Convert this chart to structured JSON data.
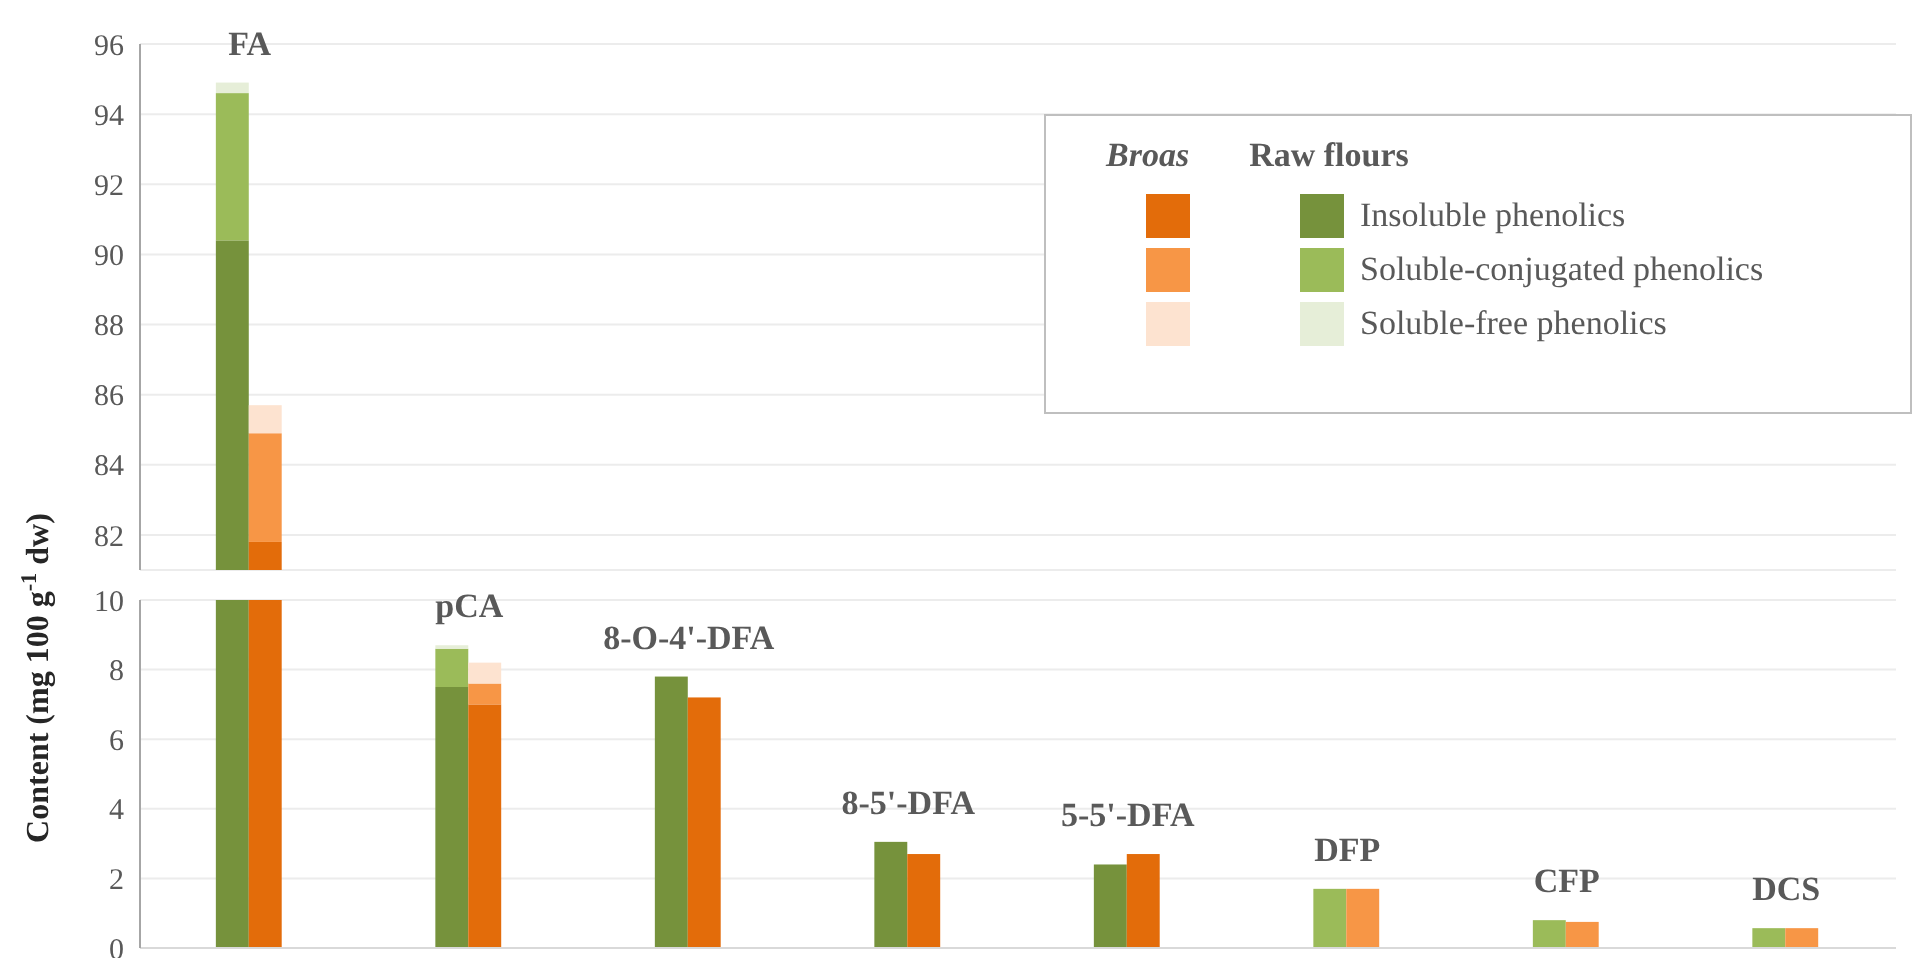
{
  "chart_data": [
    {
      "type": "bar",
      "categories": [
        "FA",
        null,
        null,
        null,
        null,
        null,
        null,
        null
      ],
      "series": [
        {
          "name": "Insoluble phenolics",
          "color": "#76923c",
          "values": [
            90.4,
            null,
            null,
            null,
            null,
            null,
            null,
            null
          ],
          "base": [
            0,
            null,
            null,
            null,
            null,
            null,
            null,
            null
          ]
        },
        {
          "name": "Soluble-conjugated phenolics",
          "color": "#9bbb59",
          "values": [
            4.2,
            null,
            null,
            null,
            null,
            null,
            null,
            null
          ],
          "base": [
            90.4,
            null,
            null,
            null,
            null,
            null,
            null,
            null
          ]
        },
        {
          "name": "Soluble-free phenolics",
          "color": "#e6eed8",
          "values": [
            0.3,
            null,
            null,
            null,
            null,
            null,
            null,
            null
          ],
          "base": [
            94.6,
            null,
            null,
            null,
            null,
            null,
            null,
            null
          ]
        },
        {
          "color": "#e36c0a",
          "values": [
            81.8,
            null,
            null,
            null,
            null,
            null,
            null,
            null
          ],
          "base": [
            0,
            null,
            null,
            null,
            null,
            null,
            null,
            null
          ]
        },
        {
          "color": "#f79646",
          "values": [
            3.1,
            null,
            null,
            null,
            null,
            null,
            null,
            null
          ],
          "base": [
            81.8,
            null,
            null,
            null,
            null,
            null,
            null,
            null
          ]
        },
        {
          "color": "#fde3d0",
          "values": [
            0.8,
            null,
            null,
            null,
            null,
            null,
            null,
            null
          ],
          "base": [
            84.9,
            null,
            null,
            null,
            null,
            null,
            null,
            null
          ]
        }
      ],
      "ylim": [
        81,
        96
      ],
      "yticks": [
        82,
        84,
        86,
        88,
        90,
        92,
        94,
        96
      ],
      "grid": "y",
      "legend": "top right",
      "legend_title": "Raw flours",
      "annotations": [
        "Broas"
      ]
    },
    {
      "type": "bar",
      "categories": [
        null,
        "pCA",
        "8-O-4'-DFA",
        "8-5'-DFA",
        "5-5'-DFA",
        "DFP",
        "CFP",
        "DCS"
      ],
      "series": [
        {
          "color": "#76923c",
          "values": [
            90.4,
            7.5,
            7.8,
            3.05,
            2.4,
            null,
            null,
            null
          ],
          "base": [
            0,
            0,
            0,
            0,
            0,
            null,
            null,
            null
          ]
        },
        {
          "color": "#9bbb59",
          "values": [
            null,
            1.1,
            null,
            null,
            null,
            1.7,
            0.8,
            0.57
          ],
          "base": [
            null,
            7.5,
            null,
            null,
            null,
            0,
            0,
            0
          ]
        },
        {
          "color": "#e6eed8",
          "values": [
            null,
            0.1,
            null,
            null,
            null,
            null,
            null,
            null
          ],
          "base": [
            null,
            8.6,
            null,
            null,
            null,
            null,
            null,
            null
          ]
        },
        {
          "color": "#e36c0a",
          "values": [
            81.8,
            7.0,
            7.2,
            2.7,
            2.7,
            null,
            null,
            null
          ],
          "base": [
            0,
            0,
            0,
            0,
            0,
            null,
            null,
            null
          ]
        },
        {
          "color": "#f79646",
          "values": [
            null,
            0.6,
            null,
            null,
            null,
            1.7,
            0.75,
            0.57
          ],
          "base": [
            null,
            7.0,
            null,
            null,
            null,
            0,
            0,
            0
          ]
        },
        {
          "color": "#fde3d0",
          "values": [
            null,
            0.6,
            null,
            null,
            null,
            null,
            null,
            null
          ],
          "base": [
            null,
            7.6,
            null,
            null,
            null,
            null,
            null,
            null
          ]
        }
      ],
      "ylim": [
        0,
        10
      ],
      "yticks": [
        0,
        2,
        4,
        6,
        8,
        10
      ],
      "grid": "y",
      "ylabel": "Content (mg 100 g$^{-1}$ dw)"
    }
  ]
}
